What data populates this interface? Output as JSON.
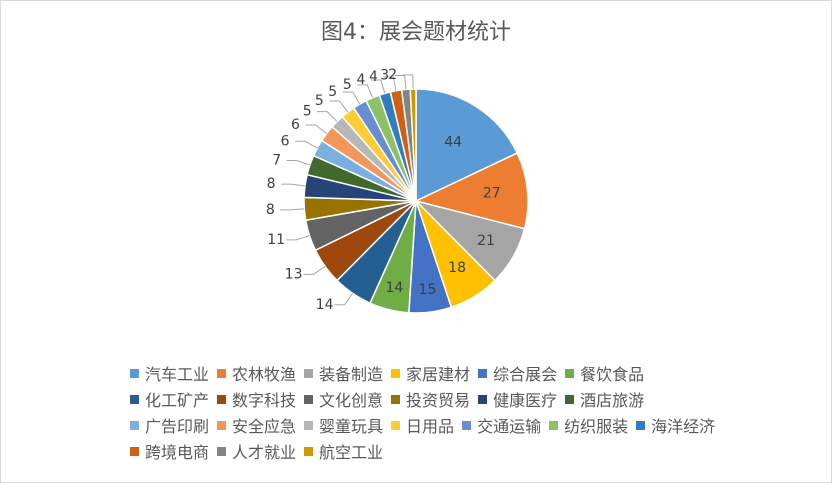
{
  "chart_data": {
    "type": "pie",
    "title": "图4：展会题材统计",
    "legend_position": "bottom",
    "categories": [
      "汽车工业",
      "农林牧渔",
      "装备制造",
      "家居建材",
      "综合展会",
      "餐饮食品",
      "化工矿产",
      "数字科技",
      "文化创意",
      "投资贸易",
      "健康医疗",
      "酒店旅游",
      "广告印刷",
      "安全应急",
      "婴童玩具",
      "日用品",
      "交通运输",
      "纺织服装",
      "海洋经济",
      "跨境电商",
      "人才就业",
      "航空工业"
    ],
    "values": [
      44,
      27,
      21,
      18,
      15,
      14,
      14,
      13,
      11,
      8,
      8,
      7,
      6,
      6,
      5,
      5,
      5,
      5,
      4,
      4,
      3,
      2
    ],
    "colors": [
      "#5B9BD5",
      "#ED7D31",
      "#A5A5A5",
      "#FFC000",
      "#4472C4",
      "#70AD47",
      "#255E91",
      "#9E480E",
      "#636363",
      "#997300",
      "#264478",
      "#43682B",
      "#7CAFDD",
      "#F1975A",
      "#B7B7B7",
      "#FFCD33",
      "#698ED0",
      "#8CC168",
      "#327DC2",
      "#D26012",
      "#848484",
      "#CC9A00"
    ]
  }
}
